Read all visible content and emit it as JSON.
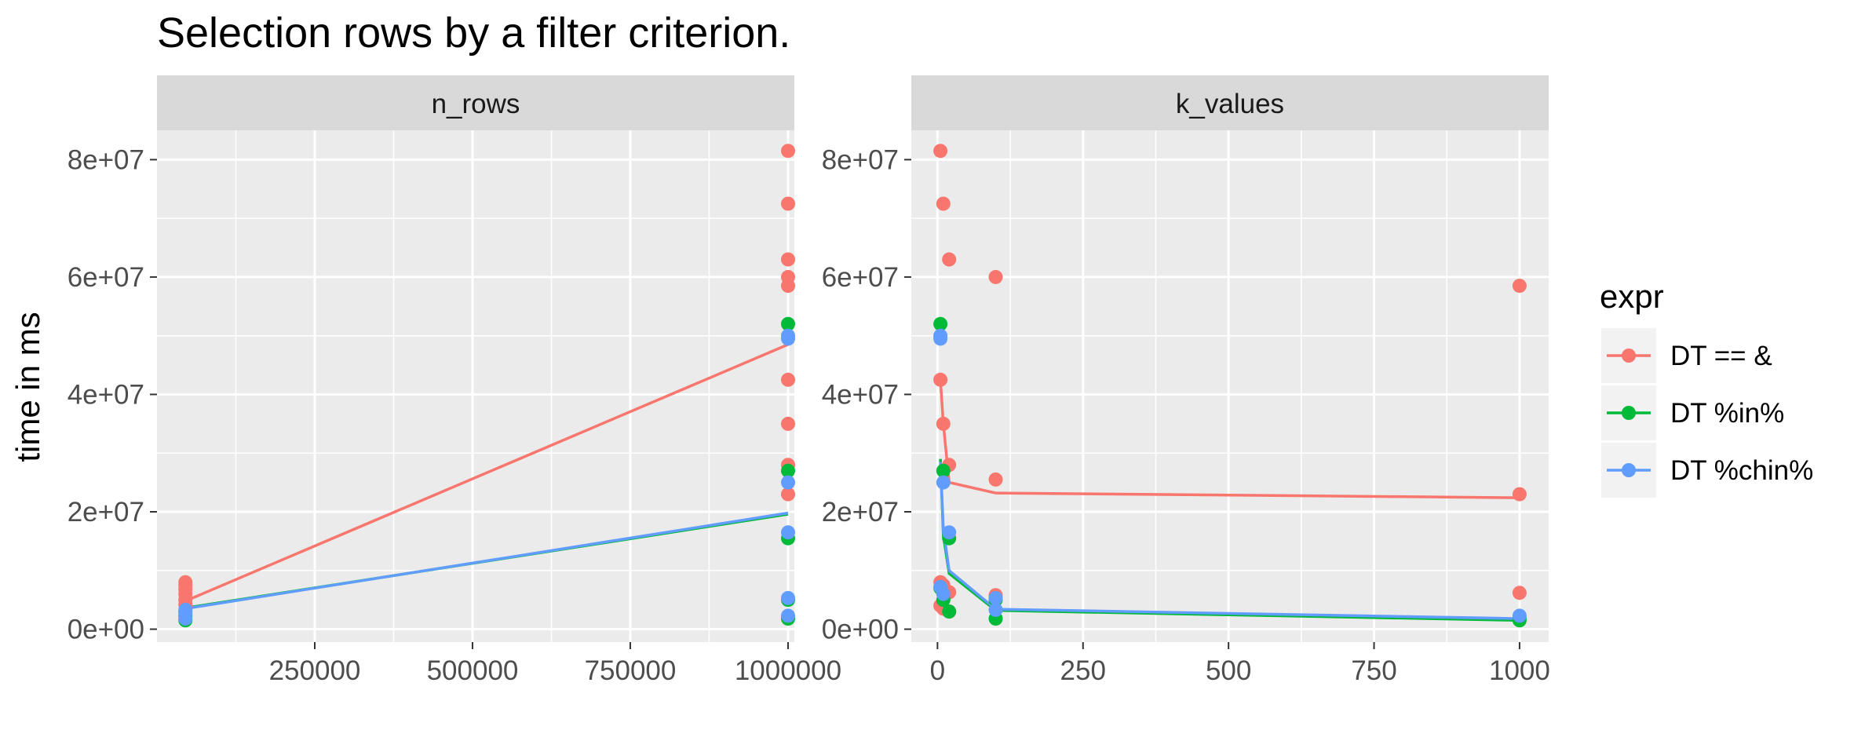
{
  "chart_data": {
    "type": "scatter",
    "title": "Selection rows by a filter criterion.",
    "ylabel": "time in ms",
    "y_ticks": [
      "0e+00",
      "2e+07",
      "4e+07",
      "6e+07",
      "8e+07"
    ],
    "y_tick_values": [
      0,
      20000000,
      40000000,
      60000000,
      80000000
    ],
    "ylim": [
      -2200000,
      85000000
    ],
    "legend": {
      "title": "expr",
      "position": "right",
      "entries": [
        {
          "label": "DT == &",
          "color": "#F8766D"
        },
        {
          "label": "DT %in%",
          "color": "#00BA38"
        },
        {
          "label": "DT %chin%",
          "color": "#619CFF"
        }
      ]
    },
    "facets": [
      {
        "strip": "n_rows",
        "xlim": [
          0,
          1010000
        ],
        "x_ticks": [
          "250000",
          "500000",
          "750000",
          "1000000"
        ],
        "x_tick_values": [
          250000,
          500000,
          750000,
          1000000
        ],
        "series": [
          {
            "name": "DT == &",
            "color": "#F8766D",
            "points": [
              [
                45000,
                4200000
              ],
              [
                45000,
                5000000
              ],
              [
                45000,
                6000000
              ],
              [
                45000,
                6800000
              ],
              [
                45000,
                7500000
              ],
              [
                45000,
                8000000
              ],
              [
                1000000,
                81500000
              ],
              [
                1000000,
                72500000
              ],
              [
                1000000,
                63000000
              ],
              [
                1000000,
                60000000
              ],
              [
                1000000,
                58500000
              ],
              [
                1000000,
                42500000
              ],
              [
                1000000,
                35000000
              ],
              [
                1000000,
                28000000
              ],
              [
                1000000,
                23000000
              ]
            ],
            "line": [
              [
                45000,
                4800000
              ],
              [
                1000000,
                48500000
              ]
            ]
          },
          {
            "name": "DT %in%",
            "color": "#00BA38",
            "points": [
              [
                45000,
                1500000
              ],
              [
                45000,
                2300000
              ],
              [
                45000,
                3000000
              ],
              [
                1000000,
                52000000
              ],
              [
                1000000,
                27000000
              ],
              [
                1000000,
                15500000
              ],
              [
                1000000,
                5000000
              ],
              [
                1000000,
                1800000
              ]
            ],
            "line": [
              [
                45000,
                3600000
              ],
              [
                1000000,
                19600000
              ]
            ]
          },
          {
            "name": "DT %chin%",
            "color": "#619CFF",
            "points": [
              [
                45000,
                1800000
              ],
              [
                45000,
                2800000
              ],
              [
                45000,
                3300000
              ],
              [
                1000000,
                50000000
              ],
              [
                1000000,
                49500000
              ],
              [
                1000000,
                25000000
              ],
              [
                1000000,
                16500000
              ],
              [
                1000000,
                5300000
              ],
              [
                1000000,
                2300000
              ]
            ],
            "line": [
              [
                45000,
                3500000
              ],
              [
                1000000,
                19800000
              ]
            ]
          }
        ]
      },
      {
        "strip": "k_values",
        "xlim": [
          -45,
          1050
        ],
        "x_ticks": [
          "0",
          "250",
          "500",
          "750",
          "1000"
        ],
        "x_tick_values": [
          0,
          250,
          500,
          750,
          1000
        ],
        "series": [
          {
            "name": "DT == &",
            "color": "#F8766D",
            "points": [
              [
                5,
                81500000
              ],
              [
                10,
                72500000
              ],
              [
                20,
                63000000
              ],
              [
                100,
                60000000
              ],
              [
                1000,
                58500000
              ],
              [
                5,
                42500000
              ],
              [
                10,
                35000000
              ],
              [
                20,
                28000000
              ],
              [
                100,
                25500000
              ],
              [
                1000,
                23000000
              ],
              [
                5,
                8000000
              ],
              [
                10,
                7500000
              ],
              [
                20,
                6300000
              ],
              [
                100,
                5800000
              ],
              [
                1000,
                6200000
              ],
              [
                5,
                4000000
              ],
              [
                10,
                3500000
              ],
              [
                20,
                3000000
              ]
            ],
            "line": [
              [
                5,
                42500000
              ],
              [
                10,
                35000000
              ],
              [
                20,
                25000000
              ],
              [
                100,
                23200000
              ],
              [
                1000,
                22400000
              ]
            ]
          },
          {
            "name": "DT %in%",
            "color": "#00BA38",
            "points": [
              [
                5,
                52000000
              ],
              [
                10,
                27000000
              ],
              [
                20,
                15500000
              ],
              [
                100,
                5000000
              ],
              [
                1000,
                1800000
              ],
              [
                5,
                7000000
              ],
              [
                10,
                5000000
              ],
              [
                20,
                3000000
              ],
              [
                100,
                1800000
              ],
              [
                1000,
                1500000
              ]
            ],
            "line": [
              [
                5,
                29000000
              ],
              [
                10,
                16000000
              ],
              [
                20,
                9500000
              ],
              [
                100,
                3200000
              ],
              [
                1000,
                1500000
              ]
            ]
          },
          {
            "name": "DT %chin%",
            "color": "#619CFF",
            "points": [
              [
                5,
                50000000
              ],
              [
                5,
                49500000
              ],
              [
                10,
                25000000
              ],
              [
                20,
                16500000
              ],
              [
                100,
                5300000
              ],
              [
                1000,
                2300000
              ],
              [
                5,
                7200000
              ],
              [
                10,
                6000000
              ],
              [
                100,
                3300000
              ]
            ],
            "line": [
              [
                5,
                28500000
              ],
              [
                10,
                17000000
              ],
              [
                20,
                10000000
              ],
              [
                100,
                3400000
              ],
              [
                1000,
                1800000
              ]
            ]
          }
        ]
      }
    ]
  }
}
